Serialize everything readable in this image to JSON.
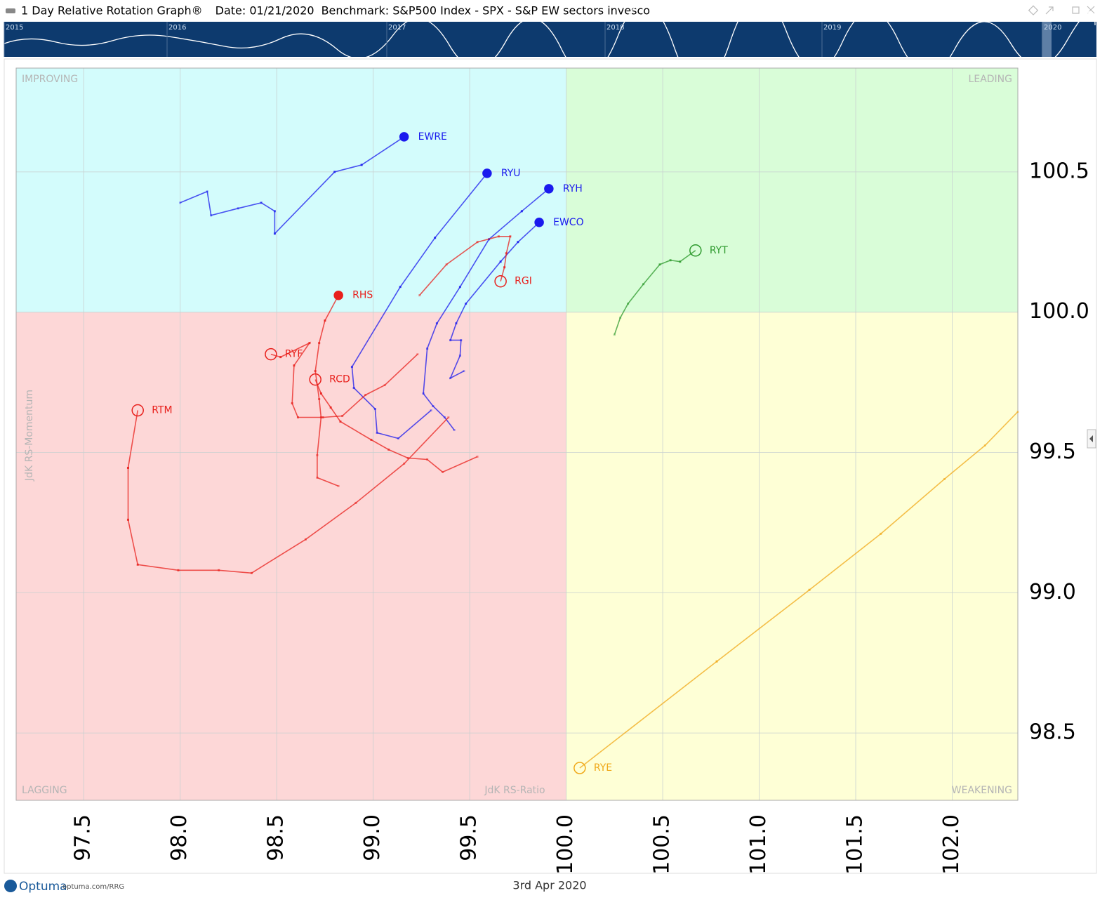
{
  "header": {
    "title": "1 Day Relative Rotation Graph®",
    "date": "Date: 01/21/2020",
    "benchmark": "Benchmark:  S&P500 Index - SPX - S&P EW sectors invesco"
  },
  "timeline_years": [
    "2015",
    "2016",
    "2017",
    "2018",
    "2019",
    "2020"
  ],
  "footer": {
    "brand": "Optuma",
    "url": "optuma.com/RRG",
    "date": "3rd Apr 2020"
  },
  "chart_data": {
    "type": "rrg",
    "x_label": "JdK RS-Ratio",
    "y_label": "JdK RS-Momentum",
    "quadrants": {
      "improving": "IMPROVING",
      "leading": "LEADING",
      "lagging": "LAGGING",
      "weakening": "WEAKENING"
    },
    "quadrant_center": [
      100,
      100
    ],
    "xlim": [
      97.15,
      102.34
    ],
    "ylim": [
      98.26,
      100.87
    ],
    "xticks": [
      97.5,
      {
        "value": 98,
        "label": "98.0"
      },
      98.5,
      {
        "value": 99,
        "label": "99.0"
      },
      99.5,
      {
        "value": 100,
        "label": "100.0"
      },
      100.5,
      {
        "value": 101,
        "label": "101.0"
      },
      101.5,
      {
        "value": 102,
        "label": "102.0"
      }
    ],
    "yticks": [
      98.5,
      {
        "value": 99,
        "label": "99.0"
      },
      99.5,
      {
        "value": 100,
        "label": "100.0"
      },
      100.5
    ],
    "grid": true,
    "series": [
      {
        "name": "EWRE",
        "color": "#1a1aee",
        "marker": "filled",
        "x": [
          98.0,
          98.14,
          98.16,
          98.3,
          98.42,
          98.49,
          98.49,
          98.8,
          98.94,
          99.16
        ],
        "values": [
          100.39,
          100.43,
          100.345,
          100.37,
          100.39,
          100.36,
          100.28,
          100.5,
          100.525,
          100.625
        ]
      },
      {
        "name": "RYU",
        "color": "#1a1aee",
        "marker": "filled",
        "x": [
          99.3,
          99.13,
          99.02,
          99.01,
          98.9,
          98.89,
          99.14,
          99.32,
          99.59
        ],
        "values": [
          99.65,
          99.55,
          99.57,
          99.655,
          99.73,
          99.805,
          100.09,
          100.265,
          100.495
        ]
      },
      {
        "name": "RYH",
        "color": "#1a1aee",
        "marker": "filled",
        "x": [
          99.42,
          99.37,
          99.31,
          99.26,
          99.28,
          99.33,
          99.45,
          99.6,
          99.77,
          99.91
        ],
        "values": [
          99.58,
          99.625,
          99.665,
          99.71,
          99.87,
          99.96,
          100.09,
          100.26,
          100.36,
          100.44
        ]
      },
      {
        "name": "EWCO",
        "color": "#1a1aee",
        "marker": "filled",
        "x": [
          99.47,
          99.4,
          99.45,
          99.455,
          99.4,
          99.43,
          99.48,
          99.66,
          99.75,
          99.86
        ],
        "values": [
          99.79,
          99.765,
          99.845,
          99.9,
          99.9,
          99.96,
          100.03,
          100.18,
          100.25,
          100.32
        ]
      },
      {
        "name": "RGI",
        "color": "#e8201c",
        "marker": "open",
        "x": [
          99.24,
          99.38,
          99.54,
          99.65,
          99.71,
          99.69,
          99.68,
          99.66
        ],
        "values": [
          100.06,
          100.17,
          100.25,
          100.27,
          100.27,
          100.21,
          100.16,
          100.11
        ]
      },
      {
        "name": "RHS",
        "color": "#e8201c",
        "marker": "filled",
        "x": [
          98.82,
          98.71,
          98.71,
          98.73,
          98.72,
          98.7,
          98.72,
          98.75,
          98.82
        ],
        "values": [
          99.38,
          99.41,
          99.49,
          99.625,
          99.69,
          99.79,
          99.89,
          99.97,
          100.06
        ]
      },
      {
        "name": "RYF",
        "color": "#e8201c",
        "marker": "open",
        "x": [
          99.23,
          99.06,
          98.96,
          98.84,
          98.74,
          98.61,
          98.58,
          98.59,
          98.67,
          98.52,
          98.47
        ],
        "values": [
          99.85,
          99.74,
          99.705,
          99.63,
          99.625,
          99.625,
          99.675,
          99.81,
          99.89,
          99.84,
          99.85
        ]
      },
      {
        "name": "RCD",
        "color": "#e8201c",
        "marker": "open",
        "x": [
          99.54,
          99.36,
          99.28,
          99.18,
          99.08,
          98.99,
          98.83,
          98.78,
          98.73,
          98.7
        ],
        "values": [
          99.485,
          99.43,
          99.475,
          99.48,
          99.51,
          99.545,
          99.61,
          99.66,
          99.71,
          99.76
        ]
      },
      {
        "name": "RTM",
        "color": "#e8201c",
        "marker": "open",
        "x": [
          99.39,
          99.16,
          98.91,
          98.65,
          98.37,
          98.2,
          97.99,
          97.78,
          97.73,
          97.73,
          97.78
        ],
        "values": [
          99.625,
          99.46,
          99.32,
          99.19,
          99.07,
          99.08,
          99.08,
          99.1,
          99.26,
          99.445,
          99.65
        ]
      },
      {
        "name": "RYT",
        "color": "#2e9a2e",
        "marker": "open",
        "x": [
          100.25,
          100.28,
          100.32,
          100.4,
          100.485,
          100.54,
          100.59,
          100.67
        ],
        "values": [
          99.92,
          99.98,
          100.03,
          100.1,
          100.17,
          100.185,
          100.18,
          100.22
        ]
      },
      {
        "name": "RYE",
        "color": "#f0a818",
        "marker": "open",
        "x": [
          102.34,
          102.17,
          101.96,
          101.63,
          101.26,
          100.78,
          100.07
        ],
        "values": [
          99.645,
          99.525,
          99.405,
          99.21,
          99.01,
          98.755,
          98.375
        ]
      }
    ]
  }
}
